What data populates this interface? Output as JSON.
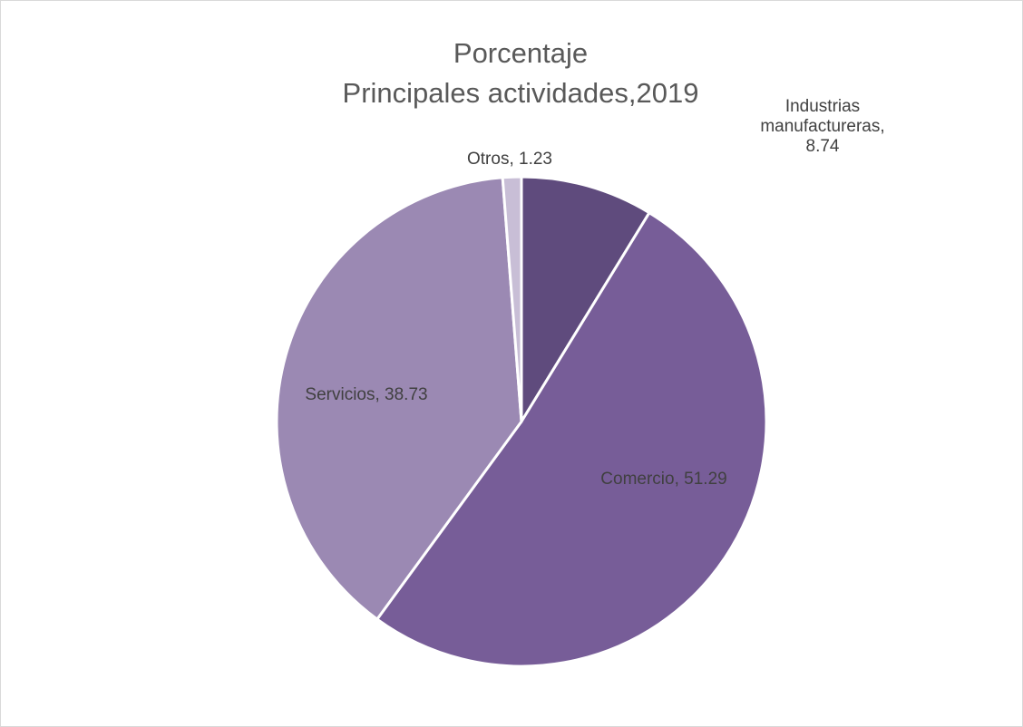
{
  "chart_data": {
    "type": "pie",
    "title_lines": [
      "Porcentaje",
      "Principales actividades,2019"
    ],
    "slices": [
      {
        "label_lines": [
          "Industrias",
          "manufactureras,",
          "8.74"
        ],
        "value": 8.74,
        "color": "#5f4b7d"
      },
      {
        "label_lines": [
          "Comercio, 51.29"
        ],
        "value": 51.29,
        "color": "#775d98"
      },
      {
        "label_lines": [
          "Servicios, 38.73"
        ],
        "value": 38.73,
        "color": "#9b89b3"
      },
      {
        "label_lines": [
          "Otros, 1.23"
        ],
        "value": 1.23,
        "color": "#c8bed6"
      }
    ],
    "legend": "none"
  }
}
